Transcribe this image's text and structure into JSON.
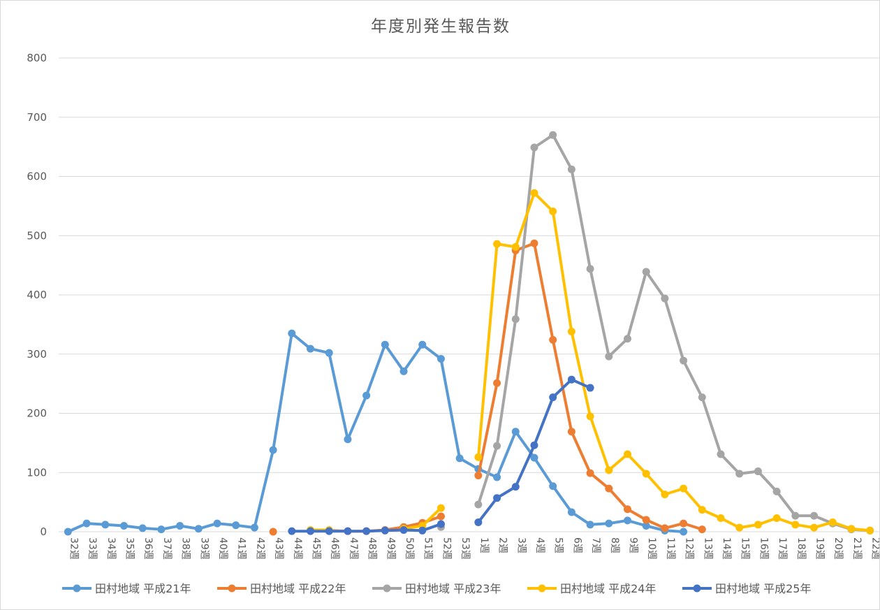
{
  "chart_data": {
    "type": "line",
    "title": "年度別発生報告数",
    "xlabel": "",
    "ylabel": "",
    "ylim": [
      0,
      800
    ],
    "yticks": [
      0,
      100,
      200,
      300,
      400,
      500,
      600,
      700,
      800
    ],
    "grid": true,
    "legend_position": "bottom",
    "categories": [
      "32週",
      "33週",
      "34週",
      "35週",
      "36週",
      "37週",
      "38週",
      "39週",
      "40週",
      "41週",
      "42週",
      "43週",
      "44週",
      "45週",
      "46週",
      "47週",
      "48週",
      "49週",
      "50週",
      "51週",
      "52週",
      "53週",
      "1週",
      "2週",
      "3週",
      "4週",
      "5週",
      "6週",
      "7週",
      "8週",
      "9週",
      "10週",
      "11週",
      "12週",
      "13週",
      "14週",
      "15週",
      "16週",
      "17週",
      "18週",
      "19週",
      "20週",
      "21週",
      "22週"
    ],
    "series": [
      {
        "name": "田村地域 平成21年",
        "color": "#5b9bd5",
        "values": [
          0,
          14,
          12,
          10,
          6,
          4,
          10,
          5,
          14,
          11,
          7,
          138,
          335,
          309,
          302,
          156,
          230,
          316,
          271,
          316,
          292,
          124,
          106,
          92,
          169,
          125,
          77,
          33,
          12,
          14,
          19,
          10,
          2,
          0,
          null,
          null,
          null,
          null,
          null,
          null,
          null,
          null,
          null,
          null
        ]
      },
      {
        "name": "田村地域 平成22年",
        "color": "#ed7d31",
        "values": [
          null,
          null,
          null,
          null,
          null,
          null,
          null,
          null,
          null,
          null,
          null,
          0,
          null,
          2,
          2,
          1,
          1,
          3,
          8,
          15,
          26,
          null,
          95,
          251,
          475,
          487,
          324,
          169,
          99,
          73,
          38,
          20,
          6,
          14,
          4,
          null,
          null,
          null,
          null,
          null,
          null,
          null,
          null,
          null
        ]
      },
      {
        "name": "田村地域 平成23年",
        "color": "#a5a5a5",
        "values": [
          null,
          null,
          null,
          null,
          null,
          null,
          null,
          null,
          null,
          null,
          null,
          null,
          null,
          null,
          null,
          null,
          null,
          null,
          null,
          null,
          8,
          null,
          46,
          145,
          359,
          649,
          670,
          612,
          444,
          296,
          326,
          439,
          394,
          289,
          227,
          131,
          98,
          102,
          68,
          27,
          27,
          14,
          4,
          2
        ]
      },
      {
        "name": "田村地域 平成24年",
        "color": "#ffc000",
        "values": [
          null,
          null,
          null,
          null,
          null,
          null,
          null,
          null,
          null,
          null,
          null,
          null,
          null,
          3,
          3,
          null,
          null,
          null,
          5,
          10,
          40,
          null,
          126,
          486,
          481,
          572,
          541,
          338,
          195,
          104,
          131,
          98,
          63,
          73,
          37,
          23,
          7,
          12,
          23,
          12,
          7,
          16,
          5,
          2
        ]
      },
      {
        "name": "田村地域 平成25年",
        "color": "#4472c4",
        "values": [
          null,
          null,
          null,
          null,
          null,
          null,
          null,
          null,
          null,
          null,
          null,
          null,
          1,
          1,
          1,
          1,
          1,
          2,
          3,
          2,
          13,
          null,
          16,
          57,
          76,
          146,
          227,
          257,
          243,
          null,
          null,
          null,
          null,
          null,
          null,
          null,
          null,
          null,
          null,
          null,
          null,
          null,
          null,
          null
        ]
      }
    ]
  }
}
